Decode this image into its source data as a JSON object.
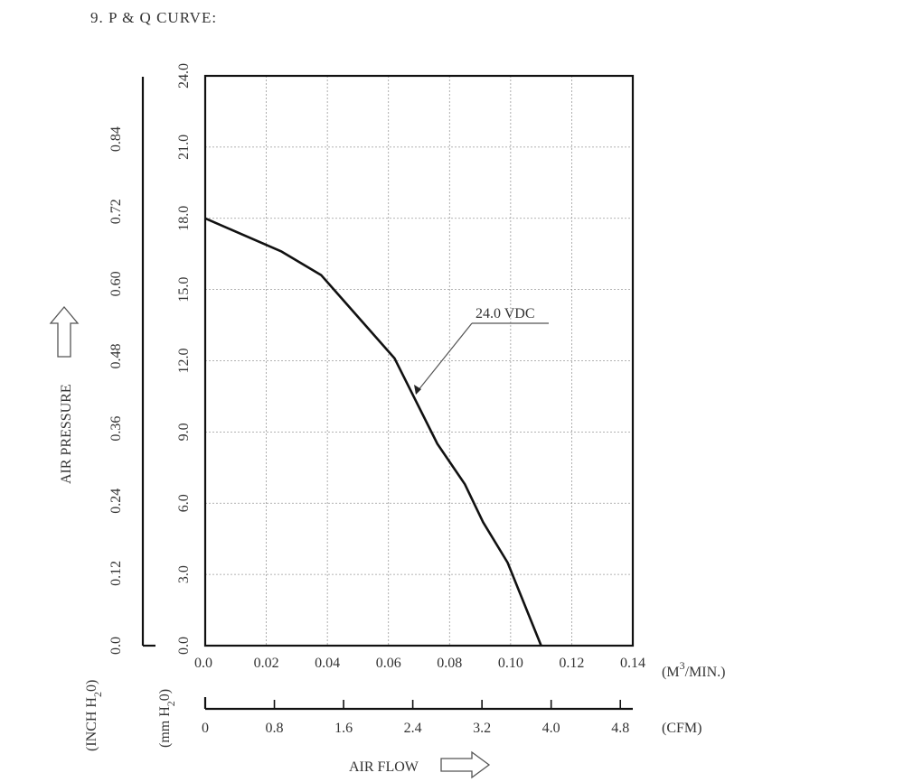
{
  "heading": "9. P & Q CURVE:",
  "chart_data": {
    "type": "line",
    "xlabel": "AIR FLOW",
    "ylabel": "AIR PRESSURE",
    "x_axis_primary": {
      "unit_main": "(M",
      "unit_sup": "3",
      "unit_tail": "/MIN.)",
      "range": [
        0,
        0.14
      ],
      "ticks": [
        "0.0",
        "0.02",
        "0.04",
        "0.06",
        "0.08",
        "0.10",
        "0.12",
        "0.14"
      ]
    },
    "x_axis_secondary": {
      "unit": "(CFM)",
      "range": [
        0,
        4.944
      ],
      "ticks": [
        "0",
        "0.8",
        "1.6",
        "2.4",
        "3.2",
        "4.0",
        "4.8"
      ],
      "tick_values": [
        0,
        0.8,
        1.6,
        2.4,
        3.2,
        4.0,
        4.8
      ]
    },
    "y_axis_primary": {
      "unit_main": "(mm H",
      "unit_sub": "2",
      "unit_tail": "0)",
      "range": [
        0,
        24
      ],
      "ticks": [
        "0.0",
        "3.0",
        "6.0",
        "9.0",
        "12.0",
        "15.0",
        "18.0",
        "21.0",
        "24.0"
      ]
    },
    "y_axis_secondary": {
      "unit_main": "(INCH H",
      "unit_sub": "2",
      "unit_tail": "0)",
      "range": [
        0,
        0.945
      ],
      "ticks": [
        "0.0",
        "0.12",
        "0.24",
        "0.36",
        "0.48",
        "0.60",
        "0.72",
        "0.84"
      ],
      "tick_values": [
        0,
        0.12,
        0.24,
        0.36,
        0.48,
        0.6,
        0.72,
        0.84
      ]
    },
    "grid": true,
    "series": [
      {
        "name": "24.0 VDC",
        "x": [
          0.0,
          0.025,
          0.038,
          0.062,
          0.076,
          0.085,
          0.091,
          0.099,
          0.11
        ],
        "y": [
          18.0,
          16.6,
          15.6,
          12.1,
          8.5,
          6.8,
          5.2,
          3.5,
          0.0
        ]
      }
    ],
    "annotation": {
      "text": "24.0 VDC",
      "x": 0.068,
      "y": 10.8
    }
  }
}
